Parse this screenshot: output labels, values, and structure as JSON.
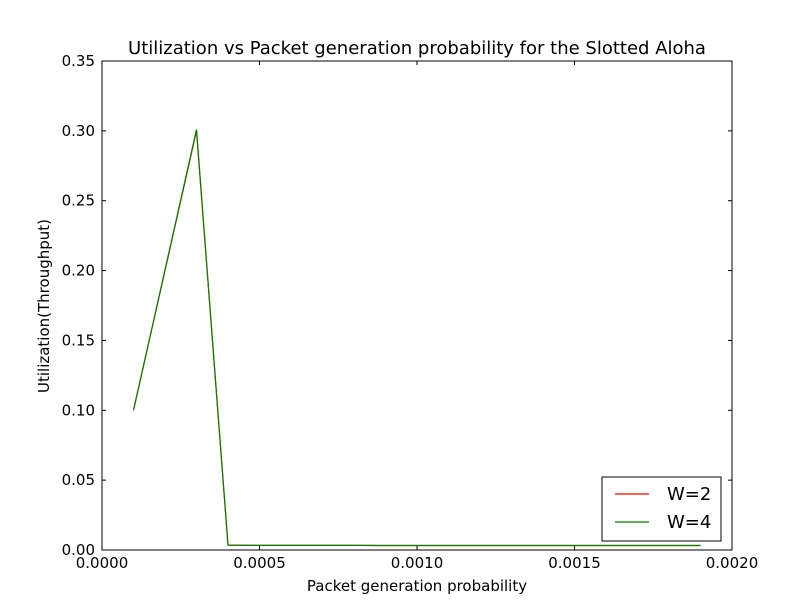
{
  "chart_data": {
    "type": "line",
    "title": "Utilization vs Packet generation probability for the Slotted Aloha",
    "xlabel": "Packet generation probability",
    "ylabel": "Utilization(Throughput)",
    "xlim": [
      0.0,
      0.002
    ],
    "ylim": [
      0.0,
      0.35
    ],
    "x_ticks": [
      0.0,
      0.0005,
      0.001,
      0.0015,
      0.002
    ],
    "x_tick_labels": [
      "0.0000",
      "0.0005",
      "0.0010",
      "0.0015",
      "0.0020"
    ],
    "y_ticks": [
      0.0,
      0.05,
      0.1,
      0.15,
      0.2,
      0.25,
      0.3,
      0.35
    ],
    "y_tick_labels": [
      "0.00",
      "0.05",
      "0.10",
      "0.15",
      "0.20",
      "0.25",
      "0.30",
      "0.35"
    ],
    "grid": false,
    "legend_position": "lower-right",
    "series": [
      {
        "name": "W=2",
        "color": "#ff0000",
        "x": [
          0.0001,
          0.0003,
          0.0004,
          0.0005,
          0.0006,
          0.0007,
          0.0008,
          0.0009,
          0.001,
          0.0011,
          0.0012,
          0.0013,
          0.0014,
          0.0015,
          0.0016,
          0.0017,
          0.0018,
          0.0019
        ],
        "y": [
          0.1,
          0.3,
          0.0035,
          0.0033,
          0.0033,
          0.0033,
          0.0033,
          0.0032,
          0.0032,
          0.0032,
          0.0032,
          0.0032,
          0.0032,
          0.0032,
          0.0032,
          0.0032,
          0.0032,
          0.0032
        ]
      },
      {
        "name": "W=4",
        "color": "#008000",
        "x": [
          0.0001,
          0.0003,
          0.0004,
          0.0005,
          0.0006,
          0.0007,
          0.0008,
          0.0009,
          0.001,
          0.0011,
          0.0012,
          0.0013,
          0.0014,
          0.0015,
          0.0016,
          0.0017,
          0.0018,
          0.0019
        ],
        "y": [
          0.1,
          0.301,
          0.0035,
          0.0033,
          0.0033,
          0.0033,
          0.0033,
          0.0032,
          0.0032,
          0.0032,
          0.0032,
          0.0032,
          0.0032,
          0.0032,
          0.0032,
          0.0032,
          0.0032,
          0.0032
        ]
      }
    ]
  }
}
